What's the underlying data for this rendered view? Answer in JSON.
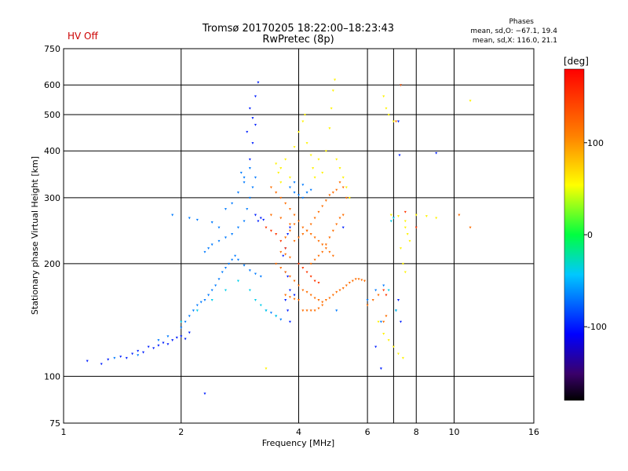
{
  "header": {
    "status": "HV Off",
    "title_line1": "Tromsø 20170205 18:22:00–18:23:43",
    "title_line2": "RwPretec (8p)",
    "phase_title": "Phases",
    "phase_o": "mean, sd,O: −67.1, 19.4",
    "phase_x": "mean, sd,X: 116.0, 21.1"
  },
  "colors": {
    "status": "#cc0000",
    "grid": "#000000"
  },
  "chart_data": {
    "type": "scatter",
    "xlabel": "Frequency [MHz]",
    "ylabel": "Stationary phase Virtual Height [km]",
    "xscale": "log",
    "yscale": "log",
    "xlim": [
      1,
      16
    ],
    "ylim": [
      75,
      750
    ],
    "xticks": [
      1,
      2,
      4,
      6,
      8,
      10,
      16
    ],
    "xtick_labels": [
      "1",
      "2",
      "4",
      "6",
      "8",
      "10",
      "16"
    ],
    "yticks": [
      75,
      100,
      200,
      300,
      400,
      500,
      600,
      750
    ],
    "ytick_labels": [
      "75",
      "100",
      "200",
      "300",
      "400",
      "500",
      "600",
      "750"
    ],
    "grid_x": [
      2,
      4,
      6,
      7,
      8,
      10
    ],
    "grid_y": [
      100,
      200,
      300,
      400,
      500,
      600
    ],
    "colorbar": {
      "label": "[deg]",
      "ticks": [
        100,
        0,
        -100
      ],
      "tick_labels": [
        "100",
        "0",
        "-100"
      ],
      "range": [
        -180,
        180
      ]
    },
    "series": [
      {
        "phase": -100,
        "points": [
          [
            1.15,
            110
          ],
          [
            1.25,
            108
          ],
          [
            1.3,
            111
          ],
          [
            1.4,
            113
          ],
          [
            1.45,
            112
          ],
          [
            1.5,
            115
          ],
          [
            1.55,
            117
          ],
          [
            1.6,
            116
          ],
          [
            1.65,
            120
          ],
          [
            1.7,
            119
          ],
          [
            1.75,
            121
          ],
          [
            1.8,
            123
          ],
          [
            1.85,
            122
          ],
          [
            1.9,
            125
          ],
          [
            1.95,
            127
          ],
          [
            2.0,
            128
          ],
          [
            2.05,
            126
          ],
          [
            2.1,
            131
          ],
          [
            3.0,
            380
          ],
          [
            3.05,
            420
          ],
          [
            3.1,
            470
          ],
          [
            3.0,
            520
          ],
          [
            3.1,
            560
          ],
          [
            3.15,
            610
          ],
          [
            2.95,
            450
          ],
          [
            3.05,
            490
          ],
          [
            3.1,
            270
          ],
          [
            3.2,
            265
          ],
          [
            3.15,
            260
          ],
          [
            3.25,
            262
          ],
          [
            3.7,
            190
          ],
          [
            3.75,
            185
          ],
          [
            3.8,
            170
          ],
          [
            3.7,
            160
          ],
          [
            3.75,
            150
          ],
          [
            3.8,
            140
          ],
          [
            3.9,
            165
          ],
          [
            3.65,
            210
          ],
          [
            3.7,
            220
          ],
          [
            3.75,
            240
          ],
          [
            3.8,
            250
          ],
          [
            7.2,
            160
          ],
          [
            7.1,
            150
          ],
          [
            7.3,
            140
          ],
          [
            7.2,
            480
          ],
          [
            7.25,
            390
          ],
          [
            7.3,
            600
          ],
          [
            9.0,
            395
          ],
          [
            2.3,
            90
          ],
          [
            6.3,
            120
          ],
          [
            6.5,
            105
          ],
          [
            5.2,
            250
          ]
        ]
      },
      {
        "phase": -70,
        "points": [
          [
            1.35,
            112
          ],
          [
            1.55,
            114
          ],
          [
            1.75,
            125
          ],
          [
            1.85,
            128
          ],
          [
            2.0,
            135
          ],
          [
            2.05,
            140
          ],
          [
            2.1,
            145
          ],
          [
            2.15,
            150
          ],
          [
            2.2,
            155
          ],
          [
            2.25,
            158
          ],
          [
            2.3,
            160
          ],
          [
            2.35,
            165
          ],
          [
            2.4,
            170
          ],
          [
            2.45,
            175
          ],
          [
            2.5,
            182
          ],
          [
            2.55,
            190
          ],
          [
            2.6,
            195
          ],
          [
            2.65,
            200
          ],
          [
            2.7,
            205
          ],
          [
            2.75,
            210
          ],
          [
            2.8,
            205
          ],
          [
            2.9,
            198
          ],
          [
            3.0,
            192
          ],
          [
            3.1,
            188
          ],
          [
            3.2,
            185
          ],
          [
            2.3,
            215
          ],
          [
            2.35,
            220
          ],
          [
            2.4,
            225
          ],
          [
            2.5,
            230
          ],
          [
            2.6,
            235
          ],
          [
            2.7,
            240
          ],
          [
            2.8,
            250
          ],
          [
            2.9,
            260
          ],
          [
            2.95,
            280
          ],
          [
            3.0,
            300
          ],
          [
            3.05,
            320
          ],
          [
            3.1,
            340
          ],
          [
            2.85,
            350
          ],
          [
            2.9,
            330
          ],
          [
            2.8,
            310
          ],
          [
            2.7,
            290
          ],
          [
            2.6,
            280
          ],
          [
            3.3,
            150
          ],
          [
            3.4,
            148
          ],
          [
            3.5,
            145
          ],
          [
            3.6,
            142
          ],
          [
            2.9,
            340
          ],
          [
            3.0,
            360
          ],
          [
            3.8,
            320
          ],
          [
            3.9,
            310
          ],
          [
            4.0,
            305
          ],
          [
            4.1,
            300
          ],
          [
            4.2,
            310
          ],
          [
            4.3,
            315
          ],
          [
            3.9,
            330
          ],
          [
            4.1,
            325
          ],
          [
            5.0,
            150
          ],
          [
            6.0,
            160
          ],
          [
            6.3,
            170
          ],
          [
            6.6,
            175
          ],
          [
            6.5,
            140
          ],
          [
            1.9,
            270
          ],
          [
            2.1,
            265
          ],
          [
            2.2,
            262
          ],
          [
            2.4,
            258
          ],
          [
            2.5,
            250
          ]
        ]
      },
      {
        "phase": -40,
        "points": [
          [
            2.0,
            140
          ],
          [
            2.2,
            150
          ],
          [
            2.4,
            160
          ],
          [
            2.6,
            170
          ],
          [
            2.8,
            180
          ],
          [
            3.0,
            170
          ],
          [
            3.1,
            160
          ],
          [
            3.2,
            155
          ],
          [
            3.3,
            150
          ],
          [
            3.5,
            145
          ],
          [
            6.8,
            170
          ],
          [
            6.9,
            260
          ],
          [
            7.0,
            265
          ],
          [
            7.1,
            150
          ]
        ]
      },
      {
        "phase": 60,
        "points": [
          [
            3.6,
            360
          ],
          [
            3.7,
            380
          ],
          [
            3.8,
            340
          ],
          [
            3.9,
            410
          ],
          [
            4.0,
            450
          ],
          [
            4.1,
            480
          ],
          [
            4.15,
            500
          ],
          [
            4.2,
            420
          ],
          [
            4.3,
            390
          ],
          [
            4.35,
            360
          ],
          [
            4.4,
            340
          ],
          [
            4.5,
            380
          ],
          [
            4.6,
            350
          ],
          [
            4.7,
            400
          ],
          [
            4.8,
            460
          ],
          [
            4.85,
            520
          ],
          [
            4.9,
            580
          ],
          [
            4.95,
            620
          ],
          [
            5.0,
            380
          ],
          [
            5.1,
            360
          ],
          [
            5.2,
            340
          ],
          [
            5.3,
            320
          ],
          [
            5.4,
            300
          ],
          [
            3.5,
            370
          ],
          [
            3.55,
            350
          ],
          [
            3.6,
            330
          ],
          [
            6.6,
            560
          ],
          [
            6.7,
            520
          ],
          [
            6.8,
            500
          ],
          [
            7.0,
            480
          ],
          [
            6.9,
            270
          ],
          [
            7.2,
            268
          ],
          [
            7.5,
            260
          ],
          [
            8.0,
            270
          ],
          [
            8.5,
            268
          ],
          [
            9.0,
            265
          ],
          [
            7.5,
            250
          ],
          [
            7.6,
            240
          ],
          [
            7.7,
            230
          ],
          [
            7.3,
            220
          ],
          [
            7.4,
            200
          ],
          [
            7.5,
            190
          ],
          [
            6.4,
            140
          ],
          [
            6.6,
            130
          ],
          [
            6.8,
            125
          ],
          [
            7.0,
            120
          ],
          [
            7.2,
            115
          ],
          [
            7.4,
            112
          ],
          [
            11.0,
            545
          ],
          [
            3.3,
            105
          ]
        ]
      },
      {
        "phase": 120,
        "points": [
          [
            3.4,
            320
          ],
          [
            3.5,
            310
          ],
          [
            3.6,
            300
          ],
          [
            3.7,
            290
          ],
          [
            3.8,
            280
          ],
          [
            3.9,
            270
          ],
          [
            4.0,
            260
          ],
          [
            4.1,
            250
          ],
          [
            4.2,
            245
          ],
          [
            4.3,
            240
          ],
          [
            4.4,
            235
          ],
          [
            4.5,
            230
          ],
          [
            4.6,
            225
          ],
          [
            4.7,
            220
          ],
          [
            4.8,
            215
          ],
          [
            4.9,
            210
          ],
          [
            3.5,
            200
          ],
          [
            3.6,
            195
          ],
          [
            3.7,
            190
          ],
          [
            3.8,
            185
          ],
          [
            3.9,
            180
          ],
          [
            4.0,
            175
          ],
          [
            4.1,
            170
          ],
          [
            4.2,
            168
          ],
          [
            4.3,
            165
          ],
          [
            4.4,
            162
          ],
          [
            4.5,
            160
          ],
          [
            4.6,
            158
          ],
          [
            4.7,
            160
          ],
          [
            4.8,
            162
          ],
          [
            4.9,
            165
          ],
          [
            5.0,
            168
          ],
          [
            5.1,
            170
          ],
          [
            5.2,
            172
          ],
          [
            5.3,
            175
          ],
          [
            5.4,
            178
          ],
          [
            5.5,
            180
          ],
          [
            5.6,
            182
          ],
          [
            5.7,
            182
          ],
          [
            5.8,
            181
          ],
          [
            5.9,
            180
          ],
          [
            3.7,
            165
          ],
          [
            3.8,
            163
          ],
          [
            3.9,
            161
          ],
          [
            4.0,
            160
          ],
          [
            3.9,
            230
          ],
          [
            4.0,
            235
          ],
          [
            4.1,
            240
          ],
          [
            4.2,
            245
          ],
          [
            4.3,
            255
          ],
          [
            4.4,
            265
          ],
          [
            4.5,
            275
          ],
          [
            4.6,
            285
          ],
          [
            4.7,
            295
          ],
          [
            4.8,
            305
          ],
          [
            4.9,
            310
          ],
          [
            5.0,
            315
          ],
          [
            4.3,
            200
          ],
          [
            4.4,
            205
          ],
          [
            4.5,
            210
          ],
          [
            4.6,
            215
          ],
          [
            4.7,
            225
          ],
          [
            4.8,
            235
          ],
          [
            4.9,
            245
          ],
          [
            5.0,
            255
          ],
          [
            5.1,
            265
          ],
          [
            5.2,
            270
          ],
          [
            4.1,
            150
          ],
          [
            4.2,
            150
          ],
          [
            4.3,
            150
          ],
          [
            4.4,
            150
          ],
          [
            4.5,
            152
          ],
          [
            4.6,
            155
          ],
          [
            6.0,
            155
          ],
          [
            6.2,
            160
          ],
          [
            6.4,
            165
          ],
          [
            5.1,
            330
          ],
          [
            5.2,
            320
          ],
          [
            5.3,
            300
          ],
          [
            3.4,
            270
          ],
          [
            3.6,
            265
          ],
          [
            3.8,
            255
          ],
          [
            3.7,
            235
          ],
          [
            3.8,
            245
          ],
          [
            3.9,
            255
          ],
          [
            3.6,
            215
          ],
          [
            3.7,
            212
          ],
          [
            3.8,
            208
          ],
          [
            6.6,
            140
          ],
          [
            6.7,
            145
          ],
          [
            7.1,
            480
          ],
          [
            7.3,
            600
          ],
          [
            10.3,
            270
          ],
          [
            11.0,
            250
          ]
        ]
      },
      {
        "phase": 150,
        "points": [
          [
            3.3,
            250
          ],
          [
            3.4,
            245
          ],
          [
            3.5,
            240
          ],
          [
            3.6,
            230
          ],
          [
            3.7,
            220
          ],
          [
            4.0,
            200
          ],
          [
            4.1,
            195
          ],
          [
            4.2,
            190
          ],
          [
            4.3,
            185
          ],
          [
            4.4,
            180
          ],
          [
            4.5,
            178
          ],
          [
            6.6,
            170
          ],
          [
            6.7,
            165
          ],
          [
            8.0,
            250
          ],
          [
            7.5,
            275
          ]
        ]
      }
    ]
  }
}
